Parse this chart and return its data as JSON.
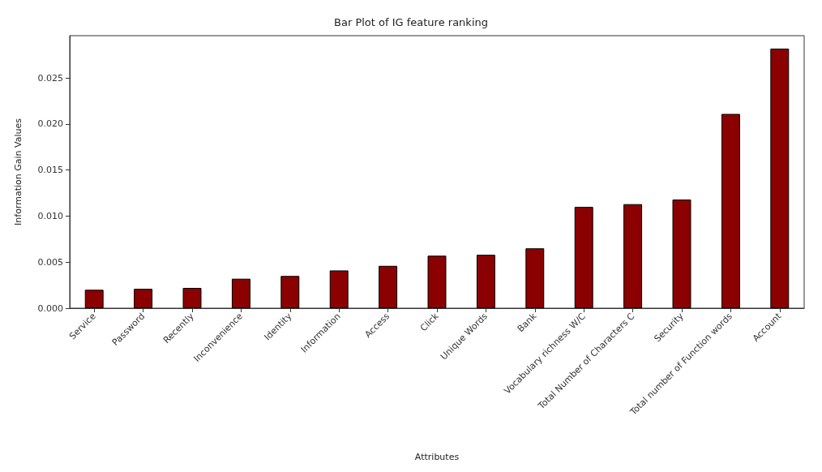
{
  "chart_data": {
    "type": "bar",
    "title": "Bar Plot of IG feature ranking",
    "xlabel": "Attributes",
    "ylabel": "Information Gain Values",
    "categories": [
      "Service",
      "Password",
      "Recently",
      "Inconvenience",
      "Identity",
      "Information",
      "Access",
      "Click",
      "Unique Words",
      "Bank",
      "Vocabulary richness W/C",
      "Total Number of Characters C",
      "Security",
      "Total number of Function words",
      "Account"
    ],
    "values": [
      0.002,
      0.0021,
      0.0022,
      0.0032,
      0.0035,
      0.0041,
      0.0046,
      0.0057,
      0.0058,
      0.0065,
      0.011,
      0.0113,
      0.0118,
      0.0211,
      0.0282
    ],
    "color": "#8b0000",
    "ylim": [
      0,
      0.0296
    ],
    "yticks": [
      {
        "value": 0,
        "label": "0.000"
      },
      0.005,
      {
        "value": 0.01,
        "label": "0.010"
      },
      0.015,
      {
        "value": 0.02,
        "label": "0.020"
      },
      0.025
    ],
    "grid": false
  }
}
